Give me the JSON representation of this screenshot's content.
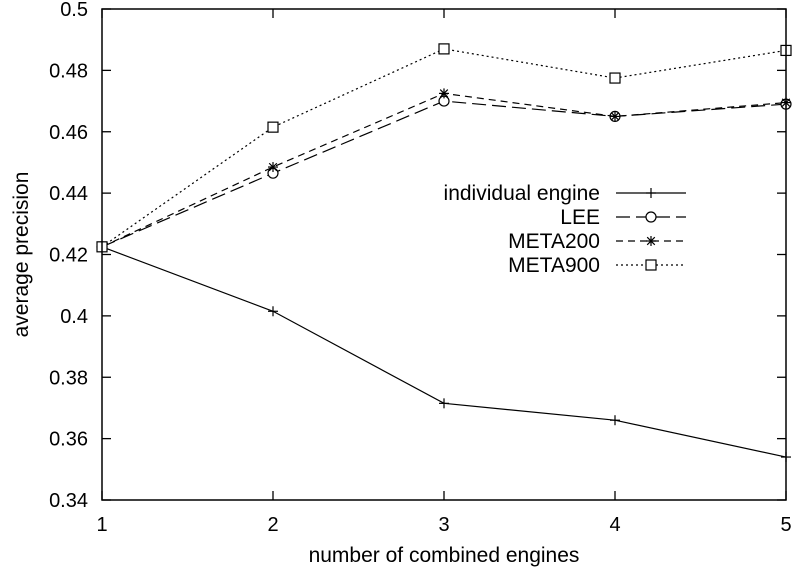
{
  "chart_data": {
    "type": "line",
    "title": "",
    "xlabel": "number of combined engines",
    "ylabel": "average precision",
    "xlim": [
      1,
      5
    ],
    "ylim": [
      0.34,
      0.5
    ],
    "x_ticks": [
      "1",
      "2",
      "3",
      "4",
      "5"
    ],
    "y_ticks": [
      "0.34",
      "0.36",
      "0.38",
      "0.4",
      "0.42",
      "0.44",
      "0.46",
      "0.48",
      "0.5"
    ],
    "grid": false,
    "legend_position": "right",
    "x": [
      1,
      2,
      3,
      4,
      5
    ],
    "series": [
      {
        "name": "individual engine",
        "values": [
          0.4225,
          0.4015,
          0.3715,
          0.366,
          0.354
        ],
        "marker": "plus",
        "dash": "solid"
      },
      {
        "name": "LEE",
        "values": [
          0.4225,
          0.4465,
          0.47,
          0.465,
          0.469
        ],
        "marker": "circle",
        "dash": "longdash"
      },
      {
        "name": "META200",
        "values": [
          0.4225,
          0.4485,
          0.4725,
          0.465,
          0.4695
        ],
        "marker": "asterisk",
        "dash": "shortdash"
      },
      {
        "name": "META900",
        "values": [
          0.4225,
          0.4615,
          0.487,
          0.4775,
          0.4865
        ],
        "marker": "square",
        "dash": "dotted"
      }
    ]
  }
}
